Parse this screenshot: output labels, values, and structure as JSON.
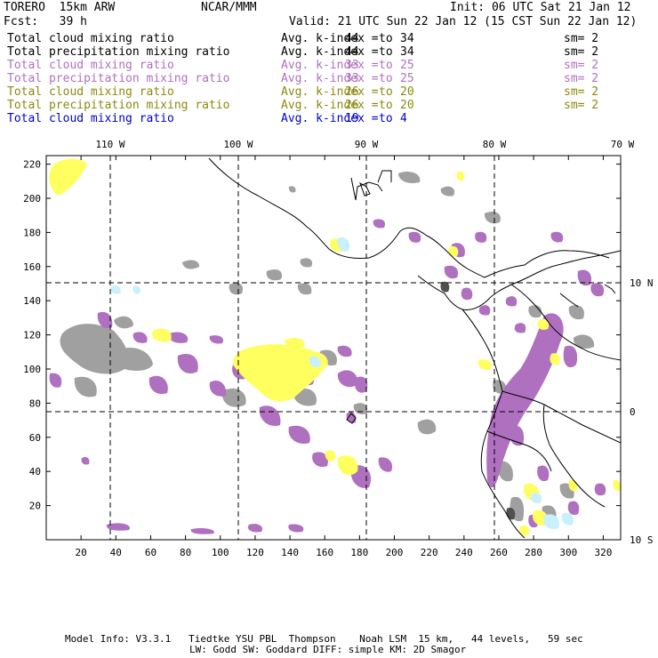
{
  "header": {
    "model": "TORERO  15km ARW",
    "org": "NCAR/MMM",
    "init": "Init: 06 UTC Sat 21 Jan 12",
    "fcst": "Fcst:   39 h",
    "valid": "Valid: 21 UTC Sun 22 Jan 12 (15 CST Sun 22 Jan 12)"
  },
  "legend": [
    {
      "field": "Total cloud mixing ratio",
      "kindex_label": "Avg. k-index =",
      "from": "44",
      "to_word": "to",
      "to": "34",
      "sm": "sm= 2",
      "color": "#000000"
    },
    {
      "field": "Total precipitation mixing ratio",
      "kindex_label": "Avg. k-index =",
      "from": "44",
      "to_word": "to",
      "to": "34",
      "sm": "sm= 2",
      "color": "#000000"
    },
    {
      "field": "Total cloud mixing ratio",
      "kindex_label": "Avg. k-index =",
      "from": "33",
      "to_word": "to",
      "to": "25",
      "sm": "sm= 2",
      "color": "#b070c0"
    },
    {
      "field": "Total precipitation mixing ratio",
      "kindex_label": "Avg. k-index =",
      "from": "33",
      "to_word": "to",
      "to": "25",
      "sm": "sm= 2",
      "color": "#b070c0"
    },
    {
      "field": "Total cloud mixing ratio",
      "kindex_label": "Avg. k-index =",
      "from": "26",
      "to_word": "to",
      "to": "20",
      "sm": "sm= 2",
      "color": "#8a8a10"
    },
    {
      "field": "Total precipitation mixing ratio",
      "kindex_label": "Avg. k-index =",
      "from": "26",
      "to_word": "to",
      "to": "20",
      "sm": "sm= 2",
      "color": "#8a8a10"
    },
    {
      "field": "Total cloud mixing ratio",
      "kindex_label": "Avg. k-index =",
      "from": "19",
      "to_word": "to",
      "to": "4",
      "sm": "",
      "color": "#0000cc"
    }
  ],
  "map": {
    "top_lon_labels": [
      "110 W",
      "100 W",
      "90 W",
      "80 W",
      "70 W"
    ],
    "right_lat_labels": [
      "10 N",
      "0",
      "10 S"
    ],
    "x_ticks": [
      "20",
      "40",
      "60",
      "80",
      "100",
      "120",
      "140",
      "160",
      "180",
      "200",
      "220",
      "240",
      "260",
      "280",
      "300",
      "320"
    ],
    "y_ticks": [
      "20",
      "40",
      "60",
      "80",
      "100",
      "120",
      "140",
      "160",
      "180",
      "200",
      "220"
    ],
    "colors": {
      "gray": "#a0a0a0",
      "purple": "#b070c0",
      "yellow": "#ffff60",
      "cyan": "#c8f0ff",
      "dark": "#505050",
      "coast": "#000000"
    }
  },
  "footer": {
    "line1": "Model Info: V3.3.1   Tiedtke YSU PBL  Thompson    Noah LSM  15 km,   44 levels,   59 sec",
    "line2": "LW: Godd SW: Goddard DIFF: simple KM: 2D Smagor"
  }
}
